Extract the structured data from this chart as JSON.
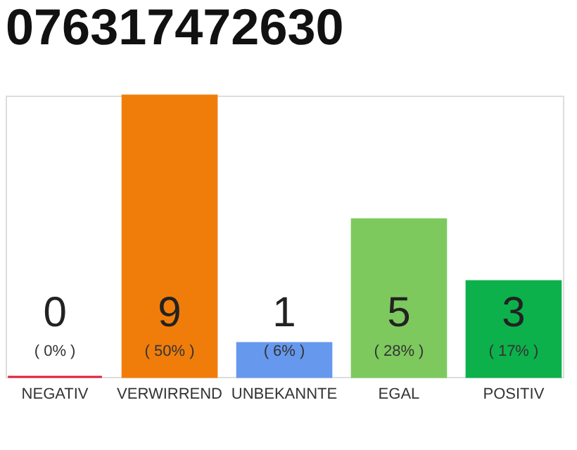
{
  "chart_data": {
    "type": "bar",
    "title": "076317472630",
    "categories": [
      "NEGATIV",
      "VERWIRREND",
      "UNBEKANNTE",
      "EGAL",
      "POSITIV"
    ],
    "values": [
      0,
      50,
      6,
      28,
      17
    ],
    "colors": [
      "#e0203c",
      "#f07d0a",
      "#6699ee",
      "#7dc95e",
      "#0cb14b"
    ],
    "value_labels": [
      "( 0% )",
      "( 50% )",
      "( 6% )",
      "( 28% )",
      "( 17% )"
    ],
    "annotations": [
      "0",
      "9",
      "1",
      "5",
      "3"
    ],
    "tick_labels": "x",
    "grid": false
  }
}
